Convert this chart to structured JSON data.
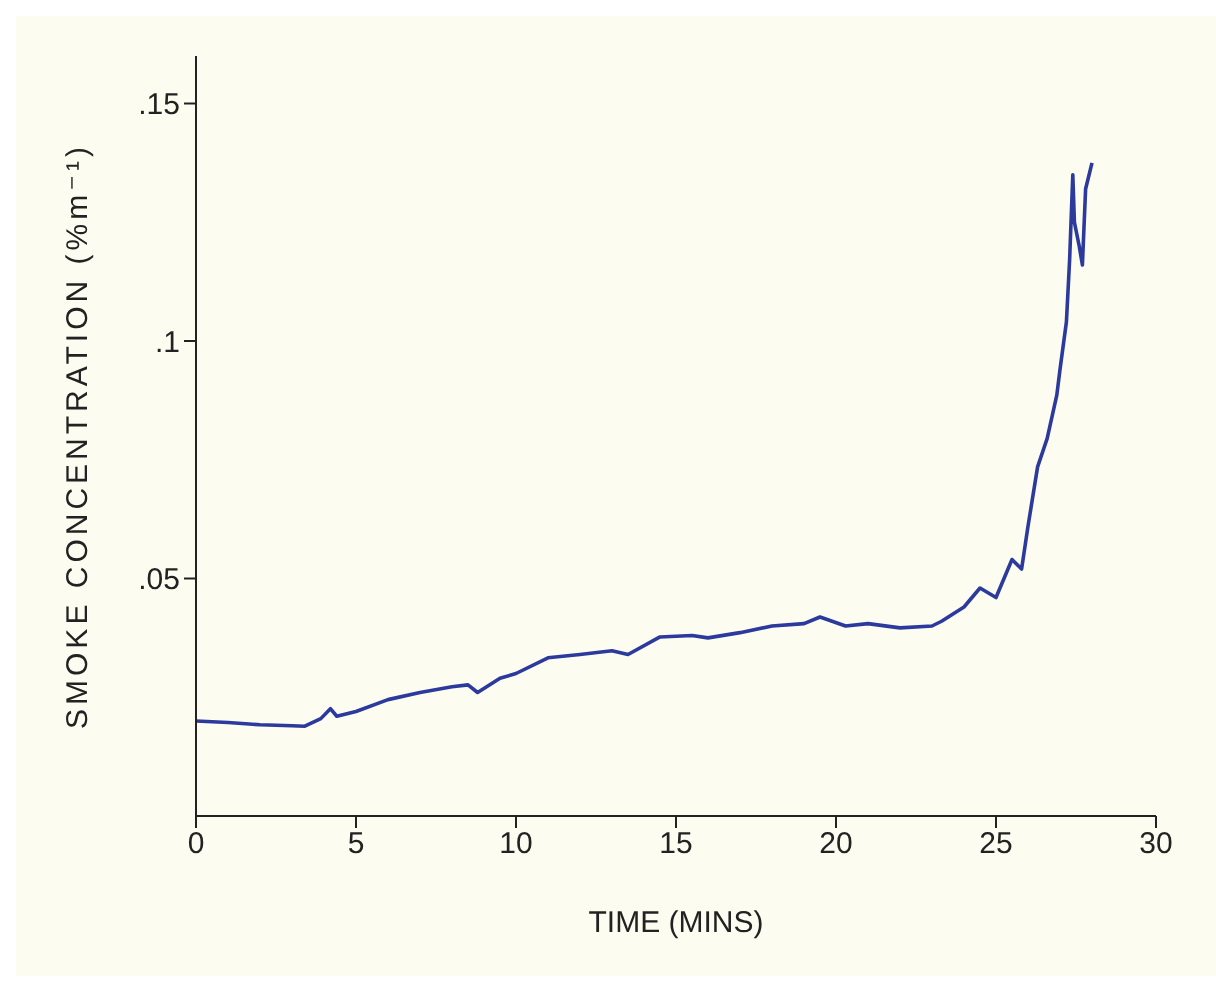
{
  "chart_data": {
    "type": "line",
    "xlabel": "TIME (MINS)",
    "ylabel": "SMOKE CONCENTRATION (%m⁻¹)",
    "x": [
      0,
      1,
      2,
      3,
      3.4,
      3.9,
      4.2,
      4.4,
      5,
      6,
      7,
      8,
      8.5,
      8.8,
      9.5,
      10,
      11,
      12,
      13,
      13.5,
      14.5,
      15.5,
      16,
      17,
      18,
      19,
      19.5,
      20.3,
      21,
      22,
      23,
      23.3,
      24,
      24.5,
      25,
      25.5,
      25.8,
      26,
      26.3,
      26.6,
      26.9,
      27,
      27.2,
      27.3,
      27.4,
      27.45,
      27.6,
      27.7,
      27.8,
      28
    ],
    "series": [
      {
        "color": "#2b3a9c",
        "values": [
          0.02,
          0.0197,
          0.0192,
          0.019,
          0.0189,
          0.0205,
          0.0226,
          0.021,
          0.022,
          0.0245,
          0.026,
          0.0272,
          0.0276,
          0.026,
          0.029,
          0.03,
          0.0333,
          0.034,
          0.0348,
          0.034,
          0.0377,
          0.038,
          0.0375,
          0.0386,
          0.04,
          0.0405,
          0.0419,
          0.04,
          0.0405,
          0.0396,
          0.04,
          0.041,
          0.044,
          0.048,
          0.046,
          0.054,
          0.052,
          0.061,
          0.0735,
          0.0795,
          0.0886,
          0.094,
          0.104,
          0.117,
          0.135,
          0.125,
          0.12,
          0.116,
          0.132,
          0.1375
        ]
      }
    ],
    "xlim": [
      0,
      30
    ],
    "xticks": [
      0,
      5,
      10,
      15,
      20,
      25,
      30
    ],
    "ylim": [
      0,
      0.16
    ],
    "yticks": [
      {
        "value": 0.05,
        "label": ".05"
      },
      {
        "value": 0.1,
        "label": ".1"
      },
      {
        "value": 0.15,
        "label": ".15"
      }
    ],
    "grid": false,
    "legend": false,
    "marker": "none",
    "line_style": "solid"
  }
}
